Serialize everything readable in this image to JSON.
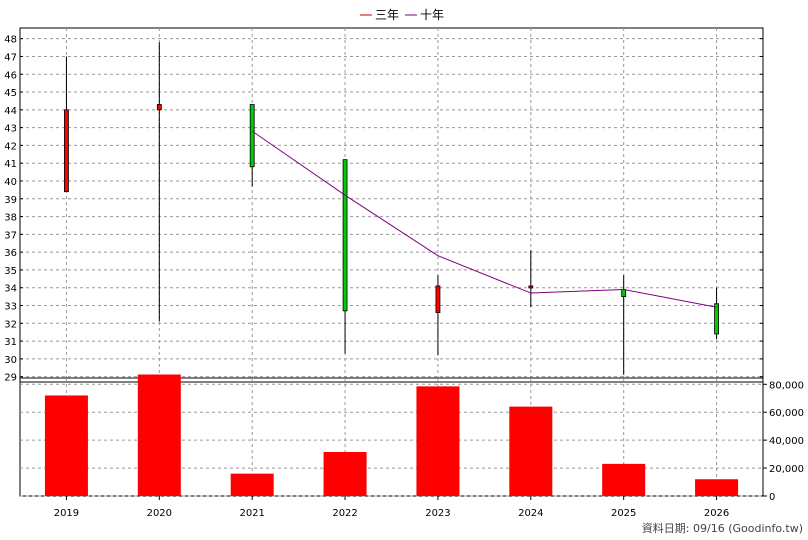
{
  "chart_data": [
    {
      "type": "candlestick",
      "categories": [
        "2019",
        "2020",
        "2021",
        "2022",
        "2023",
        "2024",
        "2025",
        "2026"
      ],
      "ohlc": [
        {
          "open": 39.4,
          "high": 47.0,
          "low": 39.4,
          "close": 44.0
        },
        {
          "open": 44.0,
          "high": 47.8,
          "low": 32.1,
          "close": 44.3
        },
        {
          "open": 44.3,
          "high": 44.3,
          "low": 39.7,
          "close": 40.8
        },
        {
          "open": 41.2,
          "high": 41.2,
          "low": 30.3,
          "close": 32.7
        },
        {
          "open": 32.6,
          "high": 34.7,
          "low": 30.2,
          "close": 34.1
        },
        {
          "open": 34.0,
          "high": 36.1,
          "low": 32.9,
          "close": 34.1
        },
        {
          "open": 33.9,
          "high": 34.7,
          "low": 29.1,
          "close": 33.5
        },
        {
          "open": 33.1,
          "high": 34.0,
          "low": 31.1,
          "close": 31.4
        }
      ],
      "series": [
        {
          "name": "三年",
          "color": "#cc0000",
          "values": [
            null,
            null,
            null,
            null,
            null,
            null,
            null,
            null
          ]
        },
        {
          "name": "十年",
          "color": "#800080",
          "values": [
            null,
            null,
            42.8,
            39.2,
            35.8,
            33.7,
            33.9,
            32.9
          ]
        }
      ],
      "ylim": [
        28.7,
        48.6
      ],
      "yticks": [
        29,
        30,
        31,
        32,
        33,
        34,
        35,
        36,
        37,
        38,
        39,
        40,
        41,
        42,
        43,
        44,
        45,
        46,
        47,
        48
      ],
      "legend_position": "top-center",
      "grid": true
    },
    {
      "type": "bar",
      "categories": [
        "2019",
        "2020",
        "2021",
        "2022",
        "2023",
        "2024",
        "2025",
        "2026"
      ],
      "values": [
        72000,
        87000,
        16000,
        31500,
        78500,
        64000,
        23000,
        12000
      ],
      "color": "#ff0000",
      "ylim": [
        0,
        84500
      ],
      "yticks": [
        "0",
        "20,000",
        "40,000",
        "60,000",
        "80,000"
      ],
      "ytick_values": [
        0,
        20000,
        40000,
        60000,
        80000
      ],
      "grid": true
    }
  ],
  "colors": {
    "up": "#ff0000",
    "down": "#00cc00",
    "border": "#000000",
    "grid": "#999999"
  },
  "footer": {
    "text": "資料日期: 09/16 (Goodinfo.tw)"
  }
}
